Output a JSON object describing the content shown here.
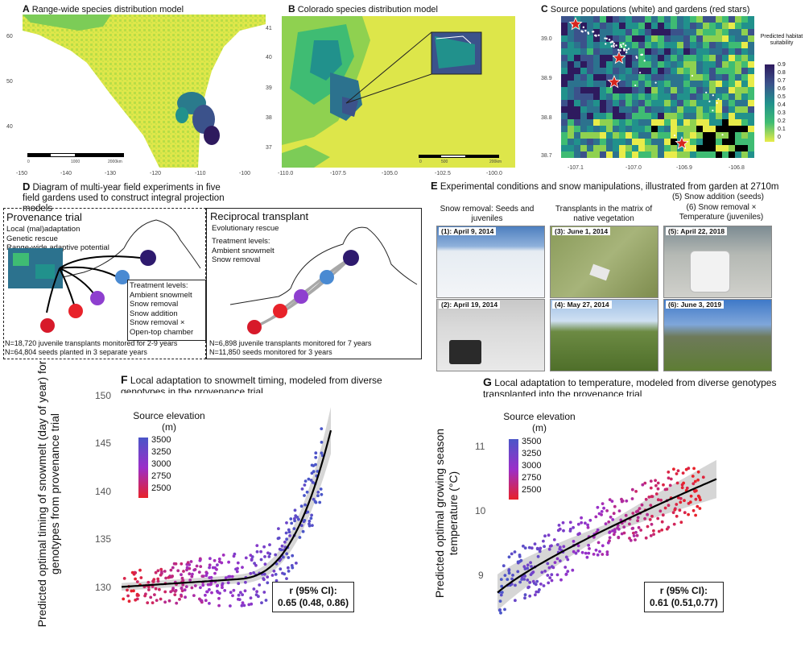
{
  "panelA": {
    "letter": "A",
    "title": "Range-wide species distribution model",
    "yticks": [
      "60",
      "50",
      "40"
    ],
    "xticks": [
      "-150",
      "-140",
      "-130",
      "-120",
      "-110",
      "-100"
    ],
    "scale": [
      "0",
      "1000",
      "2000km"
    ]
  },
  "panelB": {
    "letter": "B",
    "title": "Colorado species distribution model",
    "yticks": [
      "41",
      "40",
      "39",
      "38",
      "37"
    ],
    "xticks": [
      "-110.0",
      "-107.5",
      "-105.0",
      "-102.5",
      "-100.0"
    ],
    "scale": [
      "0",
      "500",
      "200km"
    ]
  },
  "panelC": {
    "letter": "C",
    "title": "Source populations (white) and gardens (red stars)",
    "yticks": [
      "39.0",
      "38.9",
      "38.8",
      "38.7"
    ],
    "xticks": [
      "-107.1",
      "-107.0",
      "-106.9",
      "-106.8"
    ],
    "legend_title": "Predicted habitat suitability",
    "legend_ticks": [
      "0.9",
      "0.8",
      "0.7",
      "0.6",
      "0.5",
      "0.4",
      "0.3",
      "0.2",
      "0.1",
      "0"
    ]
  },
  "panelD": {
    "letter": "D",
    "title": "Diagram of multi-year field experiments in five field gardens used to construct integral projection models",
    "prov": {
      "title": "Provenance trial",
      "lines": [
        "Local (mal)adaptation",
        "Genetic rescue",
        "Range-wide adaptive potential"
      ],
      "treat_title": "Treatment levels:",
      "treat": [
        "Ambient snowmelt",
        "Snow removal",
        "Snow addition",
        "Snow removal ×",
        "Open-top chamber"
      ],
      "n1": "N=18,720 juvenile transplants monitored for 2-9 years",
      "n2": "N=64,804 seeds planted in 3 separate years"
    },
    "recip": {
      "title": "Reciprocal transplant",
      "sub": "Evolutionary rescue",
      "treat_title": "Treatment levels:",
      "treat": [
        "Ambient snowmelt",
        "Snow removal"
      ],
      "n1": "N=6,898 juvenile transplants monitored for 7 years",
      "n2": "N=11,850 seeds monitored for 3 years"
    }
  },
  "panelE": {
    "letter": "E",
    "title": "Experimental conditions and snow manipulations, illustrated from garden at 2710m",
    "col1": "Snow removal: Seeds and juveniles",
    "col2": "Transplants in the matrix of native vegetation",
    "col3a": "(5) Snow addition (seeds)",
    "col3b": "(6) Snow removal × Temperature (juveniles)",
    "photos": [
      "(1): April 9, 2014",
      "(2): April 19, 2014",
      "(3): June 1, 2014",
      "(4): May 27, 2014",
      "(5): April 22, 2018",
      "(6): June 3, 2019"
    ]
  },
  "panelF": {
    "letter": "F",
    "title": "Local adaptation to snowmelt timing, modeled from diverse genotypes in the provenance trial",
    "ylabel": "Predicted optimal timing of snowmelt (day of year) for genotypes from provenance trial",
    "yticks": [
      "150",
      "145",
      "140",
      "135",
      "130"
    ],
    "legend_title": "Source elevation (m)",
    "legend_ticks": [
      "3500",
      "3250",
      "3000",
      "2750",
      "2500"
    ],
    "r_label": "r (95% CI):",
    "r_value": "0.65 (0.48, 0.86)"
  },
  "panelG": {
    "letter": "G",
    "title": "Local adaptation to temperature, modeled from diverse genotypes transplanted into the provenance trial",
    "ylabel": "Predicted optimal growing season temperature (°C)",
    "yticks": [
      "11",
      "10",
      "9"
    ],
    "legend_title": "Source elevation (m)",
    "legend_ticks": [
      "3500",
      "3250",
      "3000",
      "2750",
      "2500"
    ],
    "r_label": "r (95% CI):",
    "r_value": "0.61 (0.51,0.77)"
  },
  "colors": {
    "map_low": "#e8ec4a",
    "map_high": "#2e1a5e",
    "star": "#d7261e",
    "elev_low": "#e8222a",
    "elev_high": "#4a56c8"
  }
}
